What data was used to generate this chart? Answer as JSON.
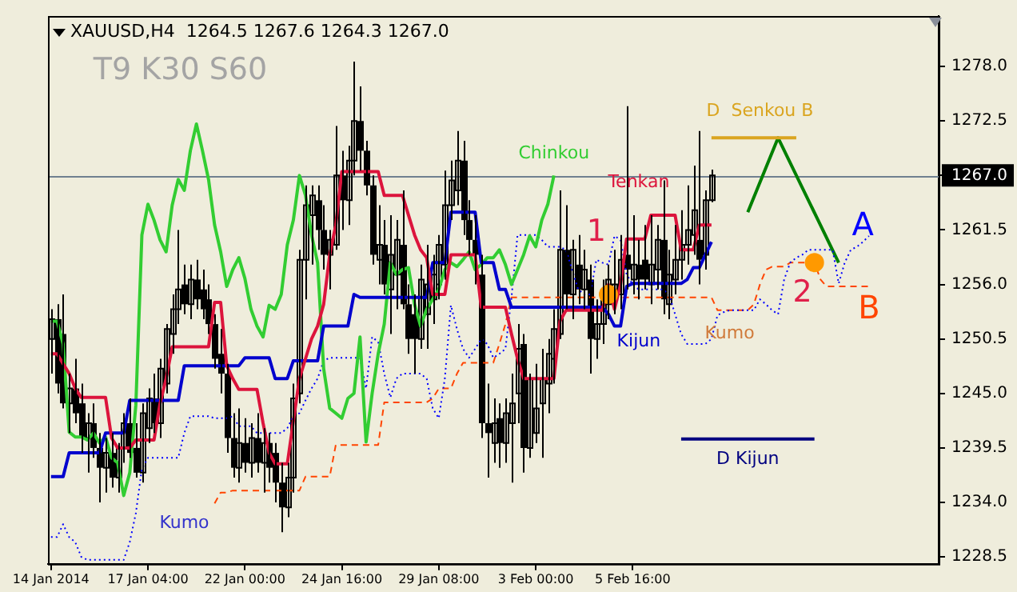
{
  "chart_data": {
    "type": "candlestick",
    "title": "XAUUSD,H4  1264.5 1267.6 1264.3 1267.0",
    "color": "#000000",
    "legend": false,
    "grid": false,
    "categories": [
      "14 Jan 2014",
      null,
      null,
      null,
      null,
      null,
      null,
      null,
      null,
      null,
      null,
      null,
      null,
      null,
      null,
      null,
      "17 Jan 04:00",
      null,
      null,
      null,
      null,
      null,
      null,
      null,
      null,
      null,
      null,
      null,
      null,
      null,
      null,
      null,
      "22 Jan 00:00",
      null,
      null,
      null,
      null,
      null,
      null,
      null,
      null,
      null,
      null,
      null,
      null,
      null,
      null,
      null,
      "24 Jan 16:00",
      null,
      null,
      null,
      null,
      null,
      null,
      null,
      null,
      null,
      null,
      null,
      null,
      null,
      null,
      null,
      "29 Jan 08:00",
      null,
      null,
      null,
      null,
      null,
      null,
      null,
      null,
      null,
      null,
      null,
      null,
      null,
      null,
      null,
      "3 Feb 00:00",
      null,
      null,
      null,
      null,
      null,
      null,
      null,
      null,
      null,
      null,
      null,
      null,
      null,
      null,
      null,
      "5 Feb 16:00",
      null,
      null,
      null,
      null,
      null,
      null,
      null,
      null,
      null,
      null,
      null,
      null,
      null,
      null,
      null,
      null,
      null,
      null,
      null,
      null,
      null,
      null,
      null,
      null,
      null,
      null,
      null,
      null,
      null,
      null,
      null,
      null,
      null,
      null,
      null,
      null,
      null,
      null,
      null,
      null,
      null,
      null,
      null,
      null,
      null,
      null,
      null,
      null,
      null,
      null
    ],
    "ohlc": [
      [
        1250.5,
        1253.5,
        1247.0,
        1252.5
      ],
      [
        1252.5,
        1254.0,
        1245.0,
        1246.0
      ],
      [
        1251.0,
        1255.0,
        1243.5,
        1244.0
      ],
      [
        1244.0,
        1247.0,
        1241.0,
        1245.5
      ],
      [
        1245.5,
        1248.5,
        1242.0,
        1243.0
      ],
      [
        1244.0,
        1246.0,
        1239.0,
        1240.5
      ],
      [
        1240.5,
        1243.0,
        1237.0,
        1242.0
      ],
      [
        1242.0,
        1244.0,
        1238.5,
        1239.5
      ],
      [
        1239.5,
        1241.0,
        1234.0,
        1237.5
      ],
      [
        1237.5,
        1240.5,
        1235.0,
        1239.0
      ],
      [
        1239.0,
        1241.0,
        1235.5,
        1236.5
      ],
      [
        1236.5,
        1240.0,
        1235.0,
        1239.5
      ],
      [
        1239.5,
        1243.0,
        1238.0,
        1242.0
      ],
      [
        1242.0,
        1244.5,
        1238.5,
        1239.0
      ],
      [
        1239.5,
        1242.0,
        1236.5,
        1237.0
      ],
      [
        1237.0,
        1244.0,
        1236.0,
        1243.0
      ],
      [
        1241.5,
        1245.5,
        1240.0,
        1244.5
      ],
      [
        1244.5,
        1247.0,
        1241.0,
        1242.0
      ],
      [
        1242.0,
        1248.5,
        1240.5,
        1247.5
      ],
      [
        1246.0,
        1252.0,
        1245.0,
        1251.5
      ],
      [
        1251.0,
        1255.0,
        1249.0,
        1253.5
      ],
      [
        1253.5,
        1261.5,
        1252.0,
        1255.5
      ],
      [
        1256.0,
        1258.0,
        1253.0,
        1254.0
      ],
      [
        1254.0,
        1258.0,
        1252.5,
        1256.5
      ],
      [
        1256.5,
        1258.5,
        1253.5,
        1254.5
      ],
      [
        1255.5,
        1257.5,
        1252.5,
        1253.5
      ],
      [
        1254.5,
        1256.0,
        1251.0,
        1252.0
      ],
      [
        1252.0,
        1253.0,
        1247.5,
        1248.5
      ],
      [
        1249.0,
        1251.5,
        1245.0,
        1247.0
      ],
      [
        1247.0,
        1248.0,
        1239.0,
        1240.5
      ],
      [
        1240.5,
        1243.0,
        1236.5,
        1237.5
      ],
      [
        1237.5,
        1243.5,
        1236.0,
        1240.0
      ],
      [
        1240.0,
        1242.5,
        1237.0,
        1238.0
      ],
      [
        1238.0,
        1242.0,
        1236.5,
        1240.5
      ],
      [
        1240.5,
        1243.0,
        1237.0,
        1238.0
      ],
      [
        1238.0,
        1241.5,
        1235.0,
        1240.0
      ],
      [
        1240.0,
        1241.0,
        1236.0,
        1237.5
      ],
      [
        1239.0,
        1240.0,
        1234.0,
        1236.0
      ],
      [
        1236.0,
        1238.0,
        1231.0,
        1233.5
      ],
      [
        1233.5,
        1238.0,
        1232.5,
        1236.5
      ],
      [
        1236.5,
        1246.0,
        1235.0,
        1244.5
      ],
      [
        1245.0,
        1259.5,
        1244.0,
        1258.5
      ],
      [
        1258.5,
        1266.0,
        1254.5,
        1264.0
      ],
      [
        1263.0,
        1266.0,
        1258.0,
        1265.0
      ],
      [
        1264.5,
        1266.0,
        1259.5,
        1261.5
      ],
      [
        1261.5,
        1264.0,
        1257.5,
        1259.0
      ],
      [
        1259.0,
        1261.5,
        1255.5,
        1260.5
      ],
      [
        1260.0,
        1272.0,
        1259.5,
        1267.0
      ],
      [
        1267.0,
        1269.5,
        1261.5,
        1264.5
      ],
      [
        1264.5,
        1270.0,
        1262.0,
        1268.5
      ],
      [
        1268.5,
        1278.5,
        1267.0,
        1272.5
      ],
      [
        1272.5,
        1276.0,
        1267.5,
        1269.5
      ],
      [
        1269.5,
        1270.5,
        1265.0,
        1266.0
      ],
      [
        1266.0,
        1267.0,
        1258.0,
        1259.0
      ],
      [
        1258.5,
        1264.0,
        1256.0,
        1260.0
      ],
      [
        1260.0,
        1262.5,
        1255.0,
        1256.0
      ],
      [
        1255.5,
        1263.0,
        1251.0,
        1259.0
      ],
      [
        1257.0,
        1262.5,
        1253.5,
        1260.5
      ],
      [
        1260.0,
        1265.5,
        1253.5,
        1254.0
      ],
      [
        1254.0,
        1256.0,
        1249.0,
        1250.5
      ],
      [
        1253.0,
        1255.0,
        1247.0,
        1250.5
      ],
      [
        1250.5,
        1258.0,
        1249.5,
        1256.5
      ],
      [
        1253.0,
        1260.0,
        1249.5,
        1256.0
      ],
      [
        1254.5,
        1259.0,
        1252.0,
        1257.0
      ],
      [
        1256.0,
        1261.0,
        1254.5,
        1260.0
      ],
      [
        1258.0,
        1267.5,
        1256.5,
        1264.0
      ],
      [
        1264.0,
        1268.5,
        1262.5,
        1266.5
      ],
      [
        1265.5,
        1271.5,
        1264.0,
        1268.5
      ],
      [
        1268.5,
        1270.5,
        1261.0,
        1262.5
      ],
      [
        1262.5,
        1264.5,
        1259.0,
        1260.5
      ],
      [
        1260.5,
        1263.0,
        1256.0,
        1259.0
      ],
      [
        1257.0,
        1259.0,
        1240.5,
        1242.0
      ],
      [
        1242.0,
        1246.0,
        1236.5,
        1241.0
      ],
      [
        1240.0,
        1244.5,
        1238.0,
        1242.0
      ],
      [
        1242.5,
        1244.0,
        1237.5,
        1240.0
      ],
      [
        1240.0,
        1244.5,
        1238.0,
        1243.0
      ],
      [
        1242.0,
        1247.0,
        1236.0,
        1244.0
      ],
      [
        1245.0,
        1252.0,
        1242.0,
        1249.5
      ],
      [
        1250.0,
        1251.0,
        1237.0,
        1239.5
      ],
      [
        1239.5,
        1247.0,
        1238.5,
        1246.5
      ],
      [
        1241.0,
        1248.0,
        1240.0,
        1243.5
      ],
      [
        1244.0,
        1249.5,
        1238.5,
        1246.5
      ],
      [
        1246.0,
        1250.5,
        1243.0,
        1249.0
      ],
      [
        1248.5,
        1253.5,
        1246.0,
        1251.5
      ],
      [
        1251.0,
        1265.5,
        1250.5,
        1259.5
      ],
      [
        1259.5,
        1264.0,
        1253.5,
        1255.0
      ],
      [
        1255.0,
        1260.5,
        1252.5,
        1259.5
      ],
      [
        1258.0,
        1261.0,
        1254.0,
        1255.5
      ],
      [
        1255.5,
        1259.5,
        1253.5,
        1257.5
      ],
      [
        1256.5,
        1258.0,
        1247.0,
        1250.5
      ],
      [
        1250.5,
        1254.5,
        1248.5,
        1252.0
      ],
      [
        1252.0,
        1256.5,
        1250.0,
        1254.5
      ],
      [
        1254.0,
        1258.0,
        1252.5,
        1256.5
      ],
      [
        1254.5,
        1259.5,
        1253.0,
        1256.0
      ],
      [
        1255.0,
        1261.0,
        1253.5,
        1258.5
      ],
      [
        1259.0,
        1274.0,
        1255.5,
        1257.5
      ],
      [
        1256.5,
        1263.0,
        1255.0,
        1258.0
      ],
      [
        1258.0,
        1260.5,
        1254.5,
        1256.5
      ],
      [
        1258.5,
        1262.0,
        1255.5,
        1256.5
      ],
      [
        1256.0,
        1263.0,
        1254.0,
        1258.0
      ],
      [
        1257.5,
        1262.0,
        1255.5,
        1260.5
      ],
      [
        1260.5,
        1266.5,
        1253.0,
        1254.5
      ],
      [
        1254.0,
        1259.5,
        1252.5,
        1257.0
      ],
      [
        1256.5,
        1262.0,
        1255.0,
        1258.5
      ],
      [
        1258.5,
        1263.5,
        1256.5,
        1260.0
      ],
      [
        1260.0,
        1266.0,
        1258.0,
        1261.5
      ],
      [
        1261.0,
        1268.0,
        1259.0,
        1263.5
      ],
      [
        1260.5,
        1271.5,
        1256.0,
        1258.5
      ],
      [
        1259.0,
        1265.5,
        1257.5,
        1264.5
      ],
      [
        1264.5,
        1267.6,
        1264.3,
        1267.0
      ],
      null,
      null,
      null,
      null,
      null,
      null,
      null,
      null,
      null,
      null,
      null,
      null,
      null,
      null,
      null,
      null,
      null,
      null,
      null,
      null,
      null,
      null,
      null,
      null,
      null,
      null,
      null,
      null,
      null,
      null,
      null,
      null,
      null,
      null,
      null,
      null,
      null
    ],
    "series": [
      {
        "name": "Tenkan",
        "type": "line",
        "color": "#dc143c",
        "values": [
          1249.0,
          1249.0,
          1248.0,
          1247.0,
          1245.5,
          1244.6,
          1244.6,
          1244.6,
          1244.6,
          1244.6,
          1240.5,
          1239.5,
          1239.5,
          1239.5,
          1240.3,
          1240.3,
          1240.3,
          1240.3,
          1244.0,
          1246.5,
          1249.7,
          1249.7,
          1249.7,
          1249.7,
          1249.7,
          1249.7,
          1249.7,
          1254.2,
          1254.2,
          1247.8,
          1246.5,
          1245.4,
          1245.4,
          1245.4,
          1245.4,
          1242.0,
          1239.0,
          1237.9,
          1237.9,
          1237.9,
          1242.2,
          1246.5,
          1248.5,
          1250.5,
          1251.8,
          1254.0,
          1259.0,
          1262.0,
          1267.4,
          1267.4,
          1267.4,
          1267.4,
          1267.4,
          1267.4,
          1267.4,
          1265.0,
          1265.0,
          1265.0,
          1265.0,
          1263.0,
          1261.0,
          1259.5,
          1258.7,
          1255.0,
          1255.0,
          1255.0,
          1259.0,
          1259.0,
          1259.0,
          1259.0,
          1259.0,
          1253.7,
          1253.7,
          1253.7,
          1253.7,
          1253.7,
          1251.0,
          1248.5,
          1246.5,
          1246.5,
          1246.5,
          1246.5,
          1246.5,
          1246.5,
          1252.3,
          1253.4,
          1253.4,
          1253.4,
          1253.4,
          1253.4,
          1253.4,
          1253.4,
          1256.0,
          1253.5,
          1256.0,
          1260.6,
          1260.6,
          1260.6,
          1260.6,
          1263.0,
          1263.0,
          1263.0,
          1263.0,
          1263.0,
          1259.5,
          1259.5,
          1259.5,
          1262.0,
          1262.0,
          1262.0,
          null,
          null,
          null,
          null,
          null,
          null,
          null,
          null,
          null,
          null,
          null,
          null,
          null,
          null,
          null,
          null,
          null,
          null,
          null,
          null,
          null,
          null,
          null,
          null,
          null,
          null,
          null,
          null,
          null,
          null,
          null,
          null,
          null,
          null,
          null,
          null,
          null
        ]
      },
      {
        "name": "Kijun",
        "type": "line",
        "color": "#0000cd",
        "values": [
          1236.6,
          1236.6,
          1236.6,
          1239.0,
          1239.0,
          1239.0,
          1239.0,
          1239.0,
          1239.0,
          1241.0,
          1241.0,
          1241.0,
          1241.0,
          1244.3,
          1244.3,
          1244.3,
          1244.3,
          1244.3,
          1244.3,
          1244.3,
          1244.3,
          1244.3,
          1247.8,
          1247.8,
          1247.8,
          1247.8,
          1247.8,
          1247.8,
          1247.8,
          1247.8,
          1247.8,
          1247.8,
          1248.6,
          1248.6,
          1248.6,
          1248.6,
          1248.6,
          1246.5,
          1246.5,
          1246.5,
          1248.3,
          1248.3,
          1248.3,
          1248.3,
          1248.3,
          1251.8,
          1251.8,
          1251.8,
          1251.8,
          1251.8,
          1255.0,
          1254.7,
          1254.7,
          1254.7,
          1254.7,
          1254.7,
          1254.7,
          1254.7,
          1254.7,
          1254.7,
          1254.7,
          1254.7,
          1254.7,
          1258.2,
          1258.2,
          1258.2,
          1263.3,
          1263.3,
          1263.3,
          1263.3,
          1263.3,
          1258.2,
          1258.2,
          1258.2,
          1255.5,
          1255.5,
          1253.7,
          1253.7,
          1253.7,
          1253.7,
          1253.7,
          1253.7,
          1253.7,
          1253.7,
          1253.7,
          1253.7,
          1253.7,
          1253.7,
          1253.7,
          1253.7,
          1253.7,
          1253.7,
          1253.0,
          1251.8,
          1251.8,
          1255.8,
          1256.1,
          1256.1,
          1256.1,
          1256.1,
          1256.1,
          1256.1,
          1256.1,
          1256.1,
          1256.1,
          1256.5,
          1257.7,
          1257.7,
          1259.0,
          1260.3,
          null,
          null,
          null,
          null,
          null,
          null,
          null,
          null,
          null,
          null,
          null,
          null,
          null,
          null,
          null,
          null,
          null,
          null,
          null,
          null,
          null,
          null,
          null,
          null,
          null,
          null,
          null,
          null,
          null,
          null,
          null,
          null,
          null,
          null,
          null,
          null,
          null
        ]
      },
      {
        "name": "Chinkou",
        "type": "line",
        "color": "#32cd32",
        "values": [
          1252.3,
          1252.3,
          1250.0,
          1241.1,
          1240.6,
          1240.6,
          1240.3,
          1241.0,
          1240.0,
          1240.6,
          1238.5,
          1238.0,
          1234.7,
          1237.0,
          1243.8,
          1261.0,
          1264.1,
          1262.5,
          1260.5,
          1259.3,
          1264.0,
          1266.6,
          1265.5,
          1269.5,
          1272.2,
          1269.5,
          1266.6,
          1262.0,
          1259.3,
          1255.8,
          1257.5,
          1258.7,
          1256.6,
          1253.5,
          1251.8,
          1250.7,
          1253.9,
          1253.5,
          1255.0,
          1260.0,
          1262.5,
          1267.0,
          1265.0,
          1261.0,
          1258.2,
          1247.5,
          1243.5,
          1243.0,
          1242.5,
          1244.5,
          1245.0,
          1250.7,
          1240.1,
          1245.0,
          1249.0,
          1252.0,
          1258.2,
          1257.0,
          1257.5,
          1257.7,
          1254.0,
          1251.8,
          1253.5,
          1254.5,
          1255.5,
          1257.5,
          1258.2,
          1257.8,
          1258.5,
          1259.3,
          1257.5,
          1258.0,
          1258.7,
          1258.7,
          1259.5,
          1258.0,
          1256.0,
          1257.5,
          1259.0,
          1260.9,
          1259.8,
          1262.5,
          1264.1,
          1267.0,
          null,
          null,
          null,
          null,
          null,
          null,
          null,
          null,
          null,
          null,
          null,
          null,
          null,
          null,
          null,
          null,
          null,
          null,
          null,
          null,
          null,
          null,
          null,
          null,
          null,
          null,
          null,
          null,
          null,
          null,
          null,
          null,
          null,
          null,
          null,
          null,
          null,
          null,
          null,
          null,
          null,
          null,
          null,
          null,
          null,
          null,
          null,
          null,
          null,
          null,
          null,
          null,
          null,
          null,
          null,
          null,
          null,
          null,
          null,
          null,
          null,
          null,
          null
        ]
      },
      {
        "name": "A",
        "type": "line",
        "color": "#0000ff",
        "line_style": "dotted",
        "values": [
          1230.5,
          1230.5,
          1231.8,
          1230.5,
          1230.0,
          1228.5,
          1228.2,
          1228.2,
          1228.2,
          1228.2,
          1228.2,
          1228.2,
          1228.2,
          1230.0,
          1232.9,
          1237.4,
          1238.5,
          1238.5,
          1238.5,
          1238.5,
          1238.5,
          1238.5,
          1241.0,
          1242.7,
          1242.7,
          1242.7,
          1242.7,
          1242.5,
          1242.5,
          1242.5,
          1242.7,
          1241.7,
          1241.7,
          1241.7,
          1241.0,
          1241.0,
          1241.0,
          1241.0,
          1241.0,
          1241.5,
          1242.7,
          1243.0,
          1244.3,
          1245.5,
          1246.5,
          1248.3,
          1248.6,
          1248.6,
          1248.6,
          1248.6,
          1248.6,
          1248.6,
          1245.5,
          1250.7,
          1250.2,
          1247.0,
          1244.6,
          1246.5,
          1247.0,
          1247.0,
          1247.0,
          1247.0,
          1246.5,
          1243.5,
          1242.5,
          1246.5,
          1253.9,
          1251.5,
          1249.5,
          1248.6,
          1249.5,
          1250.5,
          1250.0,
          1248.6,
          1249.0,
          1249.5,
          1254.7,
          1261.0,
          1261.0,
          1261.0,
          1261.0,
          1260.5,
          1259.8,
          1259.8,
          1259.8,
          1259.5,
          1257.5,
          1255.5,
          1255.0,
          1255.0,
          1258.5,
          1258.2,
          1258.0,
          1260.9,
          1260.5,
          1257.0,
          1256.0,
          1255.5,
          1255.5,
          1255.5,
          1255.5,
          1255.5,
          1255.0,
          1253.0,
          1251.0,
          1250.0,
          1250.0,
          1250.0,
          1250.0,
          1250.5,
          1252.9,
          1253.2,
          1253.4,
          1253.4,
          1253.4,
          1253.4,
          1253.4,
          1254.5,
          1254.0,
          1253.4,
          1253.0,
          1256.5,
          1258.2,
          1258.7,
          1259.0,
          1259.5,
          1259.5,
          1259.5,
          1259.5,
          1259.5,
          1256.1,
          1258.2,
          1259.5,
          1259.8,
          1260.3,
          1260.9,
          null,
          null,
          null,
          null,
          null,
          null,
          null,
          null,
          null,
          null,
          null
        ]
      },
      {
        "name": "B",
        "type": "line",
        "color": "#ff4500",
        "line_style": "dashed",
        "values": [
          null,
          null,
          null,
          null,
          null,
          null,
          null,
          null,
          null,
          null,
          null,
          null,
          null,
          null,
          null,
          null,
          null,
          null,
          null,
          null,
          null,
          null,
          null,
          null,
          null,
          null,
          null,
          1233.9,
          1235.0,
          1235.0,
          1235.2,
          1235.2,
          1235.2,
          1235.2,
          1235.2,
          1235.2,
          1235.2,
          1235.2,
          1235.2,
          1235.2,
          1235.2,
          1235.2,
          1236.6,
          1236.6,
          1236.6,
          1236.6,
          1236.6,
          1239.8,
          1239.8,
          1239.8,
          1239.8,
          1239.8,
          1239.8,
          1239.8,
          1239.8,
          1244.1,
          1244.1,
          1244.1,
          1244.1,
          1244.1,
          1244.1,
          1244.1,
          1244.1,
          1244.5,
          1245.5,
          1245.5,
          1245.5,
          1247.0,
          1248.1,
          1248.1,
          1248.1,
          1248.1,
          1248.1,
          1248.1,
          1250.0,
          1252.0,
          1254.7,
          1254.7,
          1254.7,
          1254.7,
          1254.7,
          1254.7,
          1254.7,
          1254.7,
          1254.7,
          1254.7,
          1254.7,
          1254.7,
          1254.7,
          1254.7,
          1254.7,
          1254.7,
          1254.7,
          1254.7,
          1254.7,
          1254.7,
          1254.7,
          1254.7,
          1254.7,
          1254.7,
          1254.7,
          1254.7,
          1254.7,
          1254.7,
          1254.7,
          1254.7,
          1254.7,
          1254.7,
          1254.7,
          1254.7,
          1253.4,
          1253.4,
          1253.4,
          1253.4,
          1253.4,
          1253.4,
          1254.0,
          1256.0,
          1257.5,
          1257.8,
          1257.8,
          1257.8,
          1258.2,
          1258.2,
          1258.2,
          1258.2,
          1258.2,
          1256.5,
          1255.8,
          1255.8,
          1255.8,
          1255.8,
          1255.8,
          1255.8,
          1255.8,
          1255.8,
          null,
          null,
          null,
          null,
          null,
          null,
          null,
          null,
          null,
          null,
          null
        ]
      },
      {
        "name": "D  Senkou B",
        "type": "line",
        "color": "#daa520",
        "values": [
          null,
          null,
          null,
          null,
          null,
          null,
          null,
          null,
          null,
          null,
          null,
          null,
          null,
          null,
          null,
          null,
          null,
          null,
          null,
          null,
          null,
          null,
          null,
          null,
          null,
          null,
          null,
          null,
          null,
          null,
          null,
          null,
          null,
          null,
          null,
          null,
          null,
          null,
          null,
          null,
          null,
          null,
          null,
          null,
          null,
          null,
          null,
          null,
          null,
          null,
          null,
          null,
          null,
          null,
          null,
          null,
          null,
          null,
          null,
          null,
          null,
          null,
          null,
          null,
          null,
          null,
          null,
          null,
          null,
          null,
          null,
          null,
          null,
          null,
          null,
          null,
          null,
          null,
          null,
          null,
          null,
          null,
          null,
          null,
          null,
          null,
          null,
          null,
          null,
          null,
          null,
          null,
          null,
          null,
          null,
          null,
          null,
          null,
          null,
          null,
          null,
          null,
          null,
          null,
          null,
          null,
          null,
          null,
          null,
          1270.8,
          null,
          null,
          null,
          null,
          null,
          null,
          null,
          null,
          null,
          null,
          null,
          null,
          null,
          1270.8,
          null,
          null,
          null,
          null,
          null,
          null,
          null,
          null,
          null,
          null,
          null,
          null,
          null,
          null,
          null,
          null,
          null,
          null,
          null,
          null,
          null,
          null,
          null
        ]
      },
      {
        "name": "D Kijun",
        "type": "line",
        "color": "#000080",
        "values": [
          null,
          null,
          null,
          null,
          null,
          null,
          null,
          null,
          null,
          null,
          null,
          null,
          null,
          null,
          null,
          null,
          null,
          null,
          null,
          null,
          null,
          null,
          null,
          null,
          null,
          null,
          null,
          null,
          null,
          null,
          null,
          null,
          null,
          null,
          null,
          null,
          null,
          null,
          null,
          null,
          null,
          null,
          null,
          null,
          null,
          null,
          null,
          null,
          null,
          null,
          null,
          null,
          null,
          null,
          null,
          null,
          null,
          null,
          null,
          null,
          null,
          null,
          null,
          null,
          null,
          null,
          null,
          null,
          null,
          null,
          null,
          null,
          null,
          null,
          null,
          null,
          null,
          null,
          null,
          null,
          null,
          null,
          null,
          null,
          null,
          null,
          null,
          null,
          null,
          null,
          null,
          null,
          null,
          null,
          null,
          null,
          null,
          null,
          null,
          null,
          null,
          null,
          null,
          null,
          1240.4,
          null,
          null,
          null,
          null,
          null,
          null,
          null,
          null,
          null,
          null,
          null,
          null,
          null,
          null,
          null,
          null,
          null,
          null,
          null,
          null,
          null,
          1240.4,
          null,
          null,
          null,
          null,
          null,
          null,
          null,
          null,
          null,
          null,
          null,
          null,
          null,
          null,
          null,
          null,
          null,
          null,
          null,
          null
        ]
      },
      {
        "type": "line",
        "color": "#008000",
        "values": [
          null,
          null,
          null,
          null,
          null,
          null,
          null,
          null,
          null,
          null,
          null,
          null,
          null,
          null,
          null,
          null,
          null,
          null,
          null,
          null,
          null,
          null,
          null,
          null,
          null,
          null,
          null,
          null,
          null,
          null,
          null,
          null,
          null,
          null,
          null,
          null,
          null,
          null,
          null,
          null,
          null,
          null,
          null,
          null,
          null,
          null,
          null,
          null,
          null,
          null,
          null,
          null,
          null,
          null,
          null,
          null,
          null,
          null,
          null,
          null,
          null,
          null,
          null,
          null,
          null,
          null,
          null,
          null,
          null,
          null,
          null,
          null,
          null,
          null,
          null,
          null,
          null,
          null,
          null,
          null,
          null,
          null,
          null,
          null,
          null,
          null,
          null,
          null,
          null,
          null,
          null,
          null,
          null,
          null,
          null,
          null,
          null,
          null,
          null,
          null,
          null,
          null,
          null,
          null,
          null,
          null,
          null,
          null,
          null,
          null,
          null,
          null,
          null,
          null,
          null,
          1263.3,
          null,
          null,
          null,
          null,
          1270.8,
          null,
          null,
          null,
          null,
          null,
          null,
          null,
          null,
          null,
          1258.2,
          null,
          null,
          null,
          null,
          null,
          null,
          null,
          null,
          null,
          null,
          null,
          null,
          null,
          null,
          null,
          null
        ]
      },
      {
        "type": "scatter",
        "color": "#ff9900",
        "marker": "circle",
        "values": [
          null,
          null,
          null,
          null,
          null,
          null,
          null,
          null,
          null,
          null,
          null,
          null,
          null,
          null,
          null,
          null,
          null,
          null,
          null,
          null,
          null,
          null,
          null,
          null,
          null,
          null,
          null,
          null,
          null,
          null,
          null,
          null,
          null,
          null,
          null,
          null,
          null,
          null,
          null,
          null,
          null,
          null,
          null,
          null,
          null,
          null,
          null,
          null,
          null,
          null,
          null,
          null,
          null,
          null,
          null,
          null,
          null,
          null,
          null,
          null,
          null,
          null,
          null,
          null,
          null,
          null,
          null,
          null,
          null,
          null,
          null,
          null,
          null,
          null,
          null,
          null,
          null,
          null,
          null,
          null,
          null,
          null,
          null,
          null,
          null,
          null,
          null,
          null,
          null,
          null,
          null,
          null,
          1255.0,
          null,
          null,
          null,
          null,
          null,
          null,
          null,
          null,
          null,
          null,
          null,
          null,
          null,
          null,
          null,
          null,
          null,
          null,
          null,
          null,
          null,
          null,
          null,
          null,
          null,
          null,
          null,
          null,
          null,
          null,
          null,
          null,
          null,
          1258.2,
          null,
          null,
          null,
          null,
          null,
          null,
          null,
          null,
          null,
          null,
          null,
          null,
          null,
          null,
          null,
          null,
          null,
          null,
          null,
          null
        ]
      }
    ],
    "ylim": [
      1227.8,
      1283.1
    ],
    "yticks": [
      1228.5,
      {
        "value": 1234.0,
        "label": "1234.0"
      },
      1239.5,
      {
        "value": 1245.0,
        "label": "1245.0"
      },
      1250.5,
      {
        "value": 1256.0,
        "label": "1256.0"
      },
      1261.5,
      {
        "value": 1267.0,
        "label": "1267.0"
      },
      1272.5,
      {
        "value": 1278.0,
        "label": "1278.0"
      }
    ],
    "ref_lines": [
      {
        "axis": "y",
        "value": 1267.0,
        "color": "#708090"
      }
    ],
    "annotations": [
      "T9 K30 S60",
      "Kumo",
      "Kumo",
      "1",
      "2"
    ]
  }
}
